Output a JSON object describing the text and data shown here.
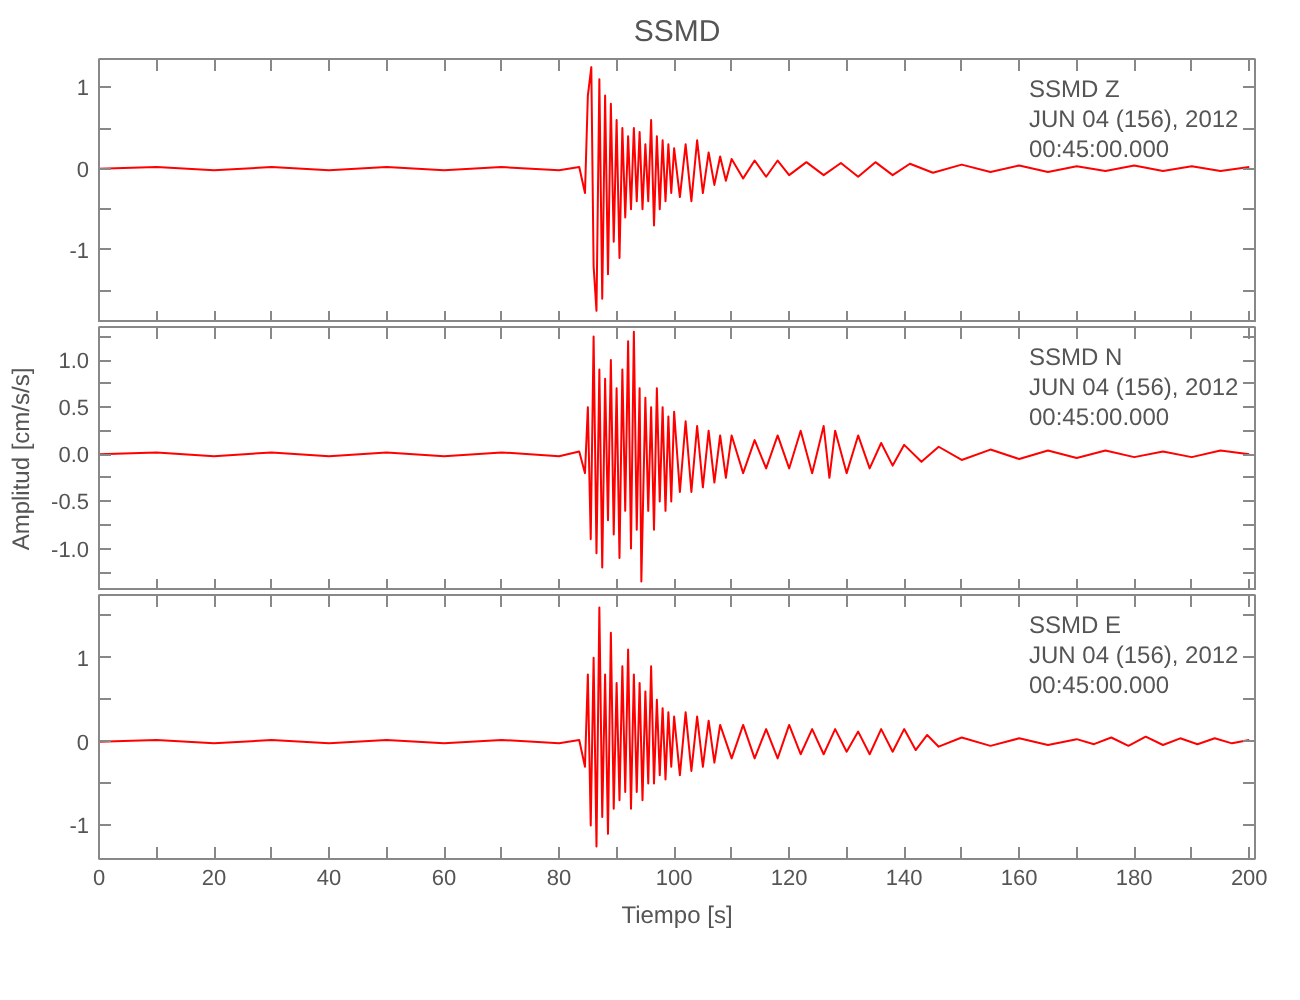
{
  "chart_data": [
    {
      "type": "line",
      "title": "SSMD",
      "tick_labels": "y",
      "xlim": [
        0,
        201
      ],
      "ylim": [
        -1.9,
        1.35
      ],
      "xticks": [
        {
          "value": 0,
          "label": null
        },
        {
          "value": 10,
          "label": null
        },
        {
          "value": 20,
          "label": null
        },
        {
          "value": 30,
          "label": null
        },
        {
          "value": 40,
          "label": null
        },
        {
          "value": 50,
          "label": null
        },
        {
          "value": 60,
          "label": null
        },
        {
          "value": 70,
          "label": null
        },
        {
          "value": 80,
          "label": null
        },
        {
          "value": 90,
          "label": null
        },
        {
          "value": 100,
          "label": null
        },
        {
          "value": 110,
          "label": null
        },
        {
          "value": 120,
          "label": null
        },
        {
          "value": 130,
          "label": null
        },
        {
          "value": 140,
          "label": null
        },
        {
          "value": 150,
          "label": null
        },
        {
          "value": 160,
          "label": null
        },
        {
          "value": 170,
          "label": null
        },
        {
          "value": 180,
          "label": null
        },
        {
          "value": 190,
          "label": null
        },
        {
          "value": 200,
          "label": null
        }
      ],
      "yticks": [
        {
          "value": -1.5,
          "label": null
        },
        -1,
        {
          "value": -0.5,
          "label": null
        },
        0,
        {
          "value": 0.5,
          "label": null
        },
        1
      ],
      "annotations": [
        "SSMD   Z",
        "JUN 04 (156), 2012",
        "00:45:00.000"
      ],
      "x": [
        0,
        10,
        20,
        30,
        40,
        50,
        60,
        70,
        80,
        83.5,
        84.5,
        85,
        85.6,
        86,
        86.5,
        87,
        87.5,
        88,
        88.5,
        89,
        89.5,
        90,
        90.5,
        91,
        91.5,
        92,
        92.5,
        93,
        93.5,
        94,
        94.5,
        95,
        95.5,
        96,
        96.5,
        97,
        97.5,
        98,
        98.5,
        99,
        99.5,
        100,
        101,
        102,
        103,
        104,
        105,
        106,
        107,
        108,
        109,
        110,
        112,
        114,
        116,
        118,
        120,
        123,
        126,
        129,
        132,
        135,
        138,
        141,
        145,
        150,
        155,
        160,
        165,
        170,
        175,
        180,
        185,
        190,
        195,
        200
      ],
      "series": [
        {
          "color": "#ff0000",
          "values": [
            0,
            0.02,
            -0.02,
            0.02,
            -0.02,
            0.02,
            -0.02,
            0.02,
            -0.02,
            0.02,
            -0.3,
            0.9,
            1.25,
            -1.2,
            -1.75,
            1.1,
            -1.6,
            0.9,
            -1.3,
            0.8,
            -0.9,
            0.6,
            -1.1,
            0.5,
            -0.6,
            0.4,
            -0.5,
            0.5,
            -0.4,
            0.45,
            -0.5,
            0.3,
            -0.4,
            0.6,
            -0.7,
            0.4,
            -0.5,
            0.35,
            -0.4,
            0.3,
            -0.3,
            0.25,
            -0.35,
            0.3,
            -0.4,
            0.35,
            -0.3,
            0.2,
            -0.2,
            0.15,
            -0.15,
            0.12,
            -0.12,
            0.1,
            -0.1,
            0.1,
            -0.08,
            0.08,
            -0.08,
            0.07,
            -0.1,
            0.08,
            -0.08,
            0.06,
            -0.05,
            0.05,
            -0.04,
            0.04,
            -0.04,
            0.03,
            -0.03,
            0.04,
            -0.03,
            0.03,
            -0.03,
            0.02
          ]
        }
      ]
    },
    {
      "type": "line",
      "ylabel": "Amplitud [cm/s/s]",
      "tick_labels": "y",
      "xlim": [
        0,
        201
      ],
      "ylim": [
        -1.45,
        1.35
      ],
      "xticks": [
        {
          "value": 0,
          "label": null
        },
        {
          "value": 10,
          "label": null
        },
        {
          "value": 20,
          "label": null
        },
        {
          "value": 30,
          "label": null
        },
        {
          "value": 40,
          "label": null
        },
        {
          "value": 50,
          "label": null
        },
        {
          "value": 60,
          "label": null
        },
        {
          "value": 70,
          "label": null
        },
        {
          "value": 80,
          "label": null
        },
        {
          "value": 90,
          "label": null
        },
        {
          "value": 100,
          "label": null
        },
        {
          "value": 110,
          "label": null
        },
        {
          "value": 120,
          "label": null
        },
        {
          "value": 130,
          "label": null
        },
        {
          "value": 140,
          "label": null
        },
        {
          "value": 150,
          "label": null
        },
        {
          "value": 160,
          "label": null
        },
        {
          "value": 170,
          "label": null
        },
        {
          "value": 180,
          "label": null
        },
        {
          "value": 190,
          "label": null
        },
        {
          "value": 200,
          "label": null
        }
      ],
      "yticks": [
        {
          "value": -1.25,
          "label": null
        },
        {
          "value": -1,
          "label": "-1.0"
        },
        {
          "value": -0.75,
          "label": null
        },
        {
          "value": -0.5,
          "label": "-0.5"
        },
        {
          "value": -0.25,
          "label": null
        },
        {
          "value": 0,
          "label": "0.0"
        },
        {
          "value": 0.25,
          "label": null
        },
        {
          "value": 0.5,
          "label": "0.5"
        },
        {
          "value": 0.75,
          "label": null
        },
        {
          "value": 1,
          "label": "1.0"
        },
        {
          "value": 1.25,
          "label": null
        }
      ],
      "annotations": [
        "SSMD   N",
        "JUN 04 (156), 2012",
        "00:45:00.000"
      ],
      "x": [
        0,
        10,
        20,
        30,
        40,
        50,
        60,
        70,
        80,
        83.5,
        84.5,
        85,
        85.5,
        86,
        86.5,
        87,
        87.5,
        88,
        88.5,
        89,
        89.5,
        90,
        90.5,
        91,
        91.5,
        92,
        92.5,
        93,
        93.5,
        94,
        94.3,
        95,
        95.5,
        96,
        96.5,
        97,
        97.5,
        98,
        98.5,
        99,
        99.5,
        100,
        101,
        102,
        103,
        104,
        105,
        106,
        107,
        108,
        109,
        110,
        112,
        114,
        116,
        118,
        120,
        122,
        124,
        126,
        127,
        128,
        130,
        132,
        134,
        136,
        138,
        140,
        143,
        146,
        150,
        155,
        160,
        165,
        170,
        175,
        180,
        185,
        190,
        195,
        200
      ],
      "series": [
        {
          "color": "#ff0000",
          "values": [
            0,
            0.02,
            -0.02,
            0.02,
            -0.02,
            0.02,
            -0.02,
            0.02,
            -0.02,
            0.03,
            -0.2,
            0.5,
            -0.9,
            1.25,
            -1.05,
            0.9,
            -1.2,
            0.8,
            -0.7,
            1.0,
            -0.85,
            0.7,
            -1.1,
            0.9,
            -0.6,
            1.2,
            -1.0,
            1.3,
            -0.8,
            0.7,
            -1.35,
            0.6,
            -0.6,
            0.5,
            -0.8,
            0.7,
            -0.5,
            0.5,
            -0.6,
            0.4,
            -0.5,
            0.45,
            -0.4,
            0.35,
            -0.4,
            0.3,
            -0.35,
            0.25,
            -0.3,
            0.2,
            -0.25,
            0.2,
            -0.2,
            0.15,
            -0.15,
            0.2,
            -0.15,
            0.25,
            -0.2,
            0.3,
            -0.25,
            0.25,
            -0.2,
            0.2,
            -0.15,
            0.12,
            -0.12,
            0.1,
            -0.08,
            0.08,
            -0.06,
            0.05,
            -0.05,
            0.04,
            -0.04,
            0.04,
            -0.03,
            0.03,
            -0.03,
            0.04,
            0
          ]
        }
      ]
    },
    {
      "type": "line",
      "xlabel": "Tiempo [s]",
      "xlim": [
        0,
        201
      ],
      "ylim": [
        -1.4,
        1.75
      ],
      "xticks": [
        0,
        {
          "value": 10,
          "label": null
        },
        20,
        {
          "value": 30,
          "label": null
        },
        40,
        {
          "value": 50,
          "label": null
        },
        60,
        {
          "value": 70,
          "label": null
        },
        80,
        {
          "value": 90,
          "label": null
        },
        100,
        {
          "value": 110,
          "label": null
        },
        120,
        {
          "value": 130,
          "label": null
        },
        140,
        {
          "value": 150,
          "label": null
        },
        160,
        {
          "value": 170,
          "label": null
        },
        180,
        {
          "value": 190,
          "label": null
        },
        200
      ],
      "yticks": [
        -1,
        {
          "value": -0.5,
          "label": null
        },
        0,
        {
          "value": 0.5,
          "label": null
        },
        1,
        {
          "value": 1.5,
          "label": null
        }
      ],
      "annotations": [
        "SSMD   E",
        "JUN 04 (156), 2012",
        "00:45:00.000"
      ],
      "x": [
        0,
        10,
        20,
        30,
        40,
        50,
        60,
        70,
        80,
        83.5,
        84.5,
        85,
        85.5,
        86,
        86.5,
        87,
        87.5,
        88,
        88.5,
        89,
        89.5,
        90,
        90.5,
        91,
        91.5,
        92,
        92.5,
        93,
        93.5,
        94,
        94.5,
        95,
        95.5,
        96,
        96.5,
        97,
        97.5,
        98,
        98.5,
        99,
        99.5,
        100,
        101,
        102,
        103,
        104,
        105,
        106,
        107,
        108,
        110,
        112,
        114,
        116,
        118,
        120,
        122,
        124,
        126,
        128,
        130,
        132,
        134,
        136,
        138,
        140,
        142,
        144,
        146,
        150,
        155,
        160,
        165,
        170,
        173,
        176,
        179,
        182,
        185,
        188,
        191,
        194,
        197,
        200
      ],
      "series": [
        {
          "color": "#ff0000",
          "values": [
            0,
            0.02,
            -0.02,
            0.02,
            -0.02,
            0.02,
            -0.02,
            0.02,
            -0.02,
            0.02,
            -0.3,
            0.8,
            -1.0,
            1.0,
            -1.25,
            1.6,
            -0.9,
            0.8,
            -1.1,
            1.3,
            -0.8,
            0.7,
            -0.7,
            0.9,
            -0.6,
            1.1,
            -0.8,
            0.8,
            -0.6,
            0.7,
            -0.7,
            0.6,
            -0.5,
            0.9,
            -0.5,
            0.5,
            -0.4,
            0.4,
            -0.45,
            0.35,
            -0.3,
            0.3,
            -0.4,
            0.35,
            -0.35,
            0.3,
            -0.3,
            0.25,
            -0.25,
            0.2,
            -0.2,
            0.2,
            -0.2,
            0.15,
            -0.2,
            0.2,
            -0.15,
            0.15,
            -0.15,
            0.15,
            -0.12,
            0.12,
            -0.15,
            0.15,
            -0.12,
            0.15,
            -0.1,
            0.08,
            -0.06,
            0.05,
            -0.05,
            0.04,
            -0.04,
            0.03,
            -0.03,
            0.05,
            -0.05,
            0.06,
            -0.04,
            0.04,
            -0.03,
            0.04,
            -0.02,
            0.02
          ]
        }
      ]
    }
  ]
}
